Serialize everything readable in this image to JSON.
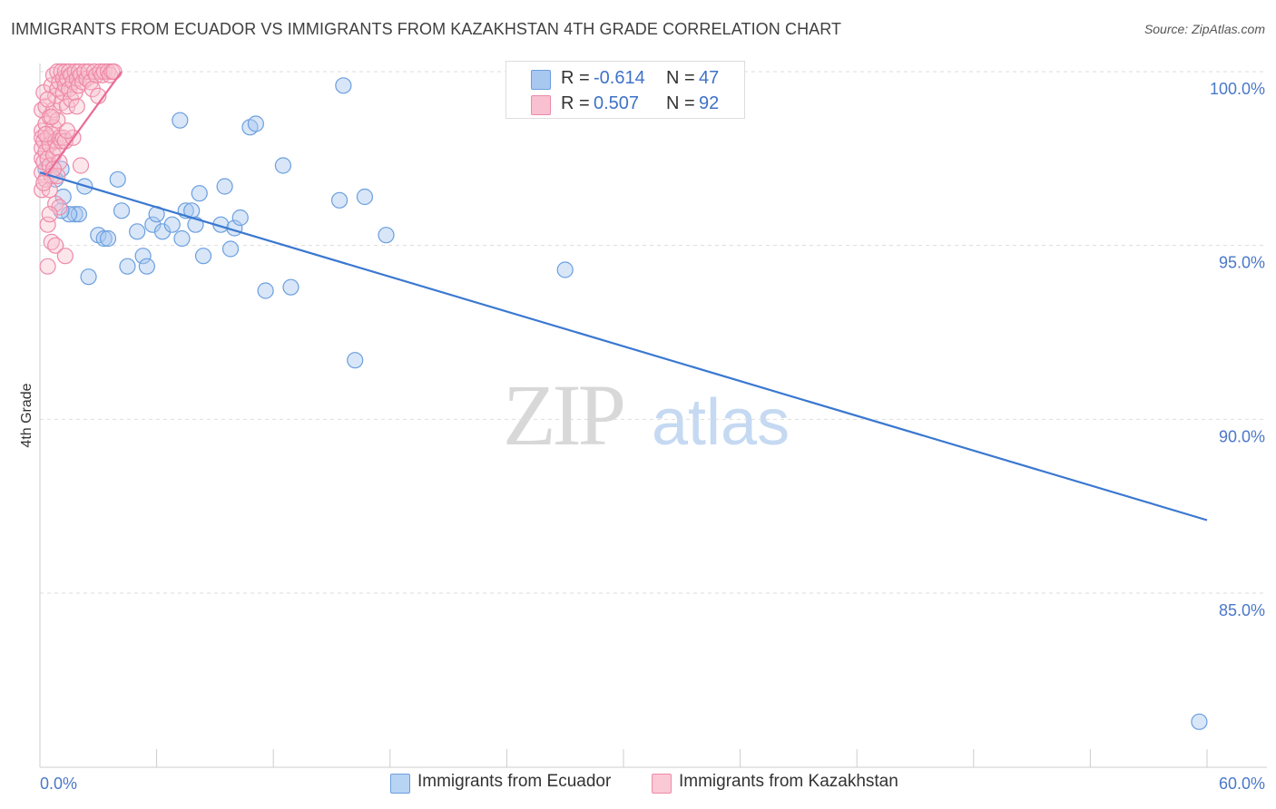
{
  "title": "IMMIGRANTS FROM ECUADOR VS IMMIGRANTS FROM KAZAKHSTAN 4TH GRADE CORRELATION CHART",
  "source": "Source: ZipAtlas.com",
  "watermark": {
    "zip": "ZIP",
    "atlas": "atlas"
  },
  "legend": {
    "rows": [
      {
        "r_label": "R =",
        "r_value": "-0.614",
        "n_label": "N =",
        "n_value": "47",
        "color": "#a8c8f0",
        "border": "#6b9fdf"
      },
      {
        "r_label": "R =",
        "r_value": "0.507",
        "n_label": "N =",
        "n_value": "92",
        "color": "#f8c0d0",
        "border": "#ee8aa8"
      }
    ]
  },
  "bottom_legend": {
    "items": [
      {
        "label": "Immigrants from Ecuador",
        "color": "#b8d4f4",
        "border": "#6b9fdf"
      },
      {
        "label": "Immigrants from Kazakhstan",
        "color": "#fbc8d6",
        "border": "#ee8aa8"
      }
    ]
  },
  "chart_data": {
    "type": "scatter",
    "title": "IMMIGRANTS FROM ECUADOR VS IMMIGRANTS FROM KAZAKHSTAN 4TH GRADE CORRELATION CHART",
    "xlabel": "",
    "ylabel": "4th Grade",
    "xlim": [
      0,
      60
    ],
    "ylim": [
      80.5,
      100.8
    ],
    "x_tick_labels": [
      {
        "value": 0,
        "label": "0.0%"
      },
      {
        "value": 60,
        "label": "60.0%"
      }
    ],
    "x_minor_ticks": [
      0,
      6,
      12,
      18,
      24,
      30,
      36,
      42,
      48,
      54,
      60
    ],
    "y_ticks": [
      {
        "value": 100,
        "label": "100.0%"
      },
      {
        "value": 95,
        "label": "95.0%"
      },
      {
        "value": 90,
        "label": "90.0%"
      },
      {
        "value": 85,
        "label": "85.0%"
      }
    ],
    "series": [
      {
        "name": "Immigrants from Ecuador",
        "color": "#6b9fdf",
        "fill": "rgba(168,200,240,0.45)",
        "trend": {
          "x": [
            0,
            60
          ],
          "y": [
            97.1,
            87.1
          ],
          "color": "#3a78d0"
        },
        "points": [
          [
            0.3,
            97.2
          ],
          [
            1.1,
            97.2
          ],
          [
            1.2,
            96.4
          ],
          [
            2.3,
            96.7
          ],
          [
            1.8,
            95.9
          ],
          [
            2.0,
            95.9
          ],
          [
            1.5,
            95.9
          ],
          [
            4.0,
            96.9
          ],
          [
            2.5,
            94.1
          ],
          [
            3.0,
            95.3
          ],
          [
            3.3,
            95.2
          ],
          [
            3.5,
            95.2
          ],
          [
            4.2,
            96.0
          ],
          [
            4.5,
            94.4
          ],
          [
            5.0,
            95.4
          ],
          [
            5.3,
            94.7
          ],
          [
            5.5,
            94.4
          ],
          [
            5.8,
            95.6
          ],
          [
            6.0,
            95.9
          ],
          [
            6.3,
            95.4
          ],
          [
            6.8,
            95.6
          ],
          [
            7.3,
            95.2
          ],
          [
            7.5,
            96.0
          ],
          [
            7.8,
            96.0
          ],
          [
            8.0,
            95.6
          ],
          [
            8.2,
            96.5
          ],
          [
            8.4,
            94.7
          ],
          [
            9.3,
            95.6
          ],
          [
            9.5,
            96.7
          ],
          [
            9.8,
            94.9
          ],
          [
            10.0,
            95.5
          ],
          [
            10.3,
            95.8
          ],
          [
            10.8,
            98.4
          ],
          [
            11.1,
            98.5
          ],
          [
            11.6,
            93.7
          ],
          [
            12.5,
            97.3
          ],
          [
            12.9,
            93.8
          ],
          [
            15.4,
            96.3
          ],
          [
            15.6,
            99.6
          ],
          [
            16.2,
            91.7
          ],
          [
            16.7,
            96.4
          ],
          [
            17.8,
            95.3
          ],
          [
            7.2,
            98.6
          ],
          [
            27.0,
            94.3
          ],
          [
            59.6,
            81.3
          ],
          [
            1.1,
            96.0
          ],
          [
            0.8,
            96.9
          ]
        ]
      },
      {
        "name": "Immigrants from Kazakhstan",
        "color": "#ee8aa8",
        "fill": "rgba(248,192,208,0.4)",
        "trend": {
          "x": [
            0.3,
            4.2
          ],
          "y": [
            97.0,
            100.0
          ],
          "color": "#e86b95"
        },
        "points": [
          [
            0.1,
            98.9
          ],
          [
            0.1,
            98.3
          ],
          [
            0.1,
            98.1
          ],
          [
            0.1,
            97.8
          ],
          [
            0.1,
            97.5
          ],
          [
            0.1,
            97.1
          ],
          [
            0.1,
            96.6
          ],
          [
            0.2,
            99.4
          ],
          [
            0.2,
            98.0
          ],
          [
            0.2,
            97.4
          ],
          [
            0.3,
            99.0
          ],
          [
            0.3,
            98.5
          ],
          [
            0.3,
            97.7
          ],
          [
            0.3,
            96.9
          ],
          [
            0.4,
            98.1
          ],
          [
            0.4,
            97.5
          ],
          [
            0.4,
            95.6
          ],
          [
            0.4,
            94.4
          ],
          [
            0.5,
            98.7
          ],
          [
            0.5,
            97.9
          ],
          [
            0.5,
            97.3
          ],
          [
            0.5,
            96.6
          ],
          [
            0.6,
            99.6
          ],
          [
            0.6,
            98.2
          ],
          [
            0.6,
            97.0
          ],
          [
            0.6,
            95.1
          ],
          [
            0.7,
            99.9
          ],
          [
            0.7,
            98.9
          ],
          [
            0.7,
            98.4
          ],
          [
            0.7,
            97.6
          ],
          [
            0.8,
            99.3
          ],
          [
            0.8,
            98.0
          ],
          [
            0.8,
            96.2
          ],
          [
            0.8,
            95.0
          ],
          [
            0.9,
            100.0
          ],
          [
            0.9,
            99.5
          ],
          [
            0.9,
            98.6
          ],
          [
            0.9,
            97.8
          ],
          [
            1.0,
            99.7
          ],
          [
            1.0,
            98.1
          ],
          [
            1.0,
            97.4
          ],
          [
            1.1,
            100.0
          ],
          [
            1.1,
            99.1
          ],
          [
            1.1,
            98.0
          ],
          [
            1.2,
            99.8
          ],
          [
            1.2,
            99.4
          ],
          [
            1.2,
            98.1
          ],
          [
            1.3,
            100.0
          ],
          [
            1.3,
            99.6
          ],
          [
            1.3,
            98.0
          ],
          [
            1.3,
            94.7
          ],
          [
            1.4,
            99.8
          ],
          [
            1.4,
            99.0
          ],
          [
            1.5,
            100.0
          ],
          [
            1.5,
            99.5
          ],
          [
            1.6,
            99.9
          ],
          [
            1.6,
            99.2
          ],
          [
            1.7,
            99.7
          ],
          [
            1.7,
            98.1
          ],
          [
            1.8,
            100.0
          ],
          [
            1.8,
            99.4
          ],
          [
            1.9,
            99.8
          ],
          [
            1.9,
            99.0
          ],
          [
            2.0,
            100.0
          ],
          [
            2.0,
            99.6
          ],
          [
            2.1,
            99.9
          ],
          [
            2.1,
            97.3
          ],
          [
            2.2,
            99.7
          ],
          [
            2.3,
            100.0
          ],
          [
            2.4,
            99.8
          ],
          [
            2.5,
            100.0
          ],
          [
            2.6,
            99.7
          ],
          [
            2.7,
            99.5
          ],
          [
            2.8,
            100.0
          ],
          [
            2.9,
            99.9
          ],
          [
            3.0,
            99.3
          ],
          [
            3.1,
            100.0
          ],
          [
            3.2,
            99.9
          ],
          [
            3.3,
            100.0
          ],
          [
            3.5,
            100.0
          ],
          [
            3.6,
            99.9
          ],
          [
            3.7,
            100.0
          ],
          [
            3.8,
            100.0
          ],
          [
            1.0,
            96.1
          ],
          [
            0.5,
            95.9
          ],
          [
            0.2,
            96.8
          ],
          [
            0.4,
            99.2
          ],
          [
            0.6,
            98.7
          ],
          [
            0.9,
            97.0
          ],
          [
            1.4,
            98.3
          ],
          [
            0.3,
            98.2
          ],
          [
            0.7,
            97.2
          ]
        ]
      }
    ]
  }
}
